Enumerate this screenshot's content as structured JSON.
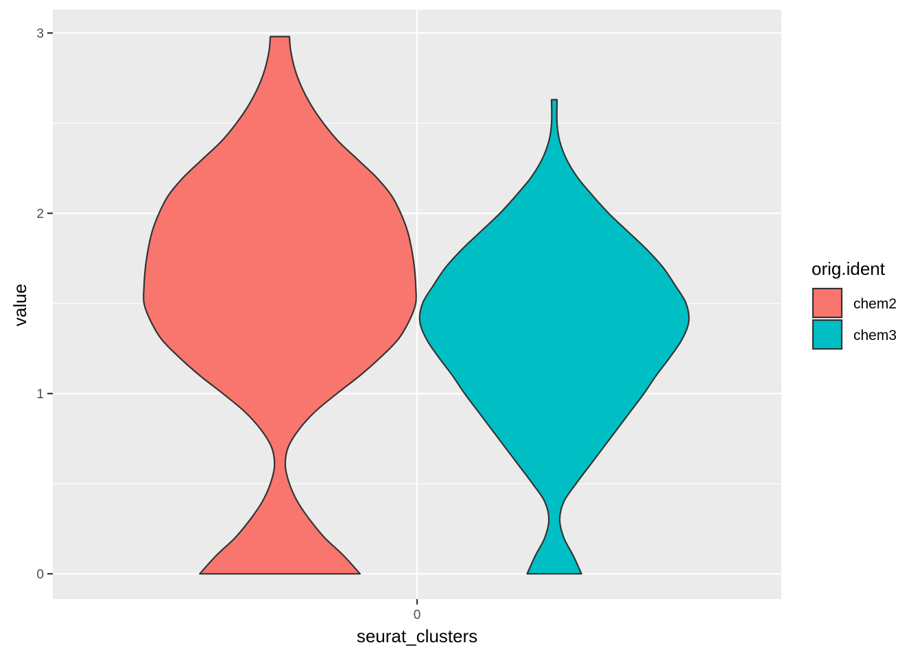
{
  "chart_data": {
    "type": "violin",
    "xlabel": "seurat_clusters",
    "ylabel": "value",
    "categories": [
      "0"
    ],
    "ylim": [
      -0.14,
      3.13
    ],
    "yticks": [
      "0",
      "1",
      "2",
      "3"
    ],
    "grid": true,
    "legend_title": "orig.ident",
    "legend_position": "right",
    "colors": {
      "panel": "#EBEBEB",
      "grid": "#FFFFFF",
      "outline": "#333333"
    },
    "series": [
      {
        "name": "chem2",
        "color": "#F8766D",
        "profile": [
          {
            "y": 0.0,
            "w": 0.59
          },
          {
            "y": 0.1,
            "w": 0.47
          },
          {
            "y": 0.2,
            "w": 0.33
          },
          {
            "y": 0.3,
            "w": 0.22
          },
          {
            "y": 0.4,
            "w": 0.13
          },
          {
            "y": 0.5,
            "w": 0.07
          },
          {
            "y": 0.6,
            "w": 0.04
          },
          {
            "y": 0.7,
            "w": 0.06
          },
          {
            "y": 0.8,
            "w": 0.14
          },
          {
            "y": 0.9,
            "w": 0.26
          },
          {
            "y": 1.0,
            "w": 0.42
          },
          {
            "y": 1.1,
            "w": 0.59
          },
          {
            "y": 1.2,
            "w": 0.74
          },
          {
            "y": 1.3,
            "w": 0.87
          },
          {
            "y": 1.4,
            "w": 0.95
          },
          {
            "y": 1.5,
            "w": 1.0
          },
          {
            "y": 1.6,
            "w": 1.0
          },
          {
            "y": 1.7,
            "w": 0.99
          },
          {
            "y": 1.8,
            "w": 0.97
          },
          {
            "y": 1.9,
            "w": 0.94
          },
          {
            "y": 2.0,
            "w": 0.89
          },
          {
            "y": 2.1,
            "w": 0.82
          },
          {
            "y": 2.2,
            "w": 0.71
          },
          {
            "y": 2.3,
            "w": 0.57
          },
          {
            "y": 2.4,
            "w": 0.43
          },
          {
            "y": 2.5,
            "w": 0.32
          },
          {
            "y": 2.6,
            "w": 0.23
          },
          {
            "y": 2.7,
            "w": 0.16
          },
          {
            "y": 2.8,
            "w": 0.11
          },
          {
            "y": 2.9,
            "w": 0.08
          },
          {
            "y": 2.98,
            "w": 0.07
          }
        ]
      },
      {
        "name": "chem3",
        "color": "#00BFC4",
        "profile": [
          {
            "y": 0.0,
            "w": 0.2
          },
          {
            "y": 0.1,
            "w": 0.14
          },
          {
            "y": 0.2,
            "w": 0.07
          },
          {
            "y": 0.3,
            "w": 0.04
          },
          {
            "y": 0.4,
            "w": 0.07
          },
          {
            "y": 0.5,
            "w": 0.16
          },
          {
            "y": 0.6,
            "w": 0.26
          },
          {
            "y": 0.7,
            "w": 0.36
          },
          {
            "y": 0.8,
            "w": 0.46
          },
          {
            "y": 0.9,
            "w": 0.56
          },
          {
            "y": 1.0,
            "w": 0.66
          },
          {
            "y": 1.1,
            "w": 0.75
          },
          {
            "y": 1.2,
            "w": 0.85
          },
          {
            "y": 1.3,
            "w": 0.94
          },
          {
            "y": 1.4,
            "w": 0.99
          },
          {
            "y": 1.5,
            "w": 0.97
          },
          {
            "y": 1.6,
            "w": 0.89
          },
          {
            "y": 1.7,
            "w": 0.8
          },
          {
            "y": 1.8,
            "w": 0.68
          },
          {
            "y": 1.9,
            "w": 0.54
          },
          {
            "y": 2.0,
            "w": 0.4
          },
          {
            "y": 2.1,
            "w": 0.28
          },
          {
            "y": 2.2,
            "w": 0.17
          },
          {
            "y": 2.3,
            "w": 0.09
          },
          {
            "y": 2.4,
            "w": 0.04
          },
          {
            "y": 2.5,
            "w": 0.02
          },
          {
            "y": 2.63,
            "w": 0.02
          }
        ]
      }
    ]
  }
}
